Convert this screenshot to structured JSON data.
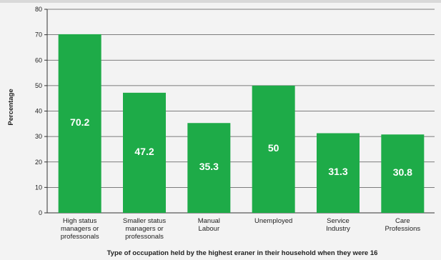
{
  "chart_data": {
    "type": "bar",
    "categories": [
      [
        "High status",
        "managers or",
        "professonals"
      ],
      [
        "Smaller status",
        "managers or",
        "professonals"
      ],
      [
        "Manual",
        "Labour"
      ],
      [
        "Unemployed"
      ],
      [
        "Service",
        "Industry"
      ],
      [
        "Care",
        "Professions"
      ]
    ],
    "values": [
      70.2,
      47.2,
      35.3,
      50,
      31.3,
      30.8
    ],
    "value_labels": [
      "70.2",
      "47.2",
      "35.3",
      "50",
      "31.3",
      "30.8"
    ],
    "ylabel": "Percentage",
    "xlabel": "Type of occupation held by the highest eraner in their household when they were 16",
    "ylim": [
      0,
      80
    ],
    "yticks": [
      0,
      10,
      20,
      30,
      40,
      50,
      60,
      70,
      80
    ],
    "grid": true,
    "bar_color": "#1eab48",
    "label_color": "#ffffff"
  }
}
